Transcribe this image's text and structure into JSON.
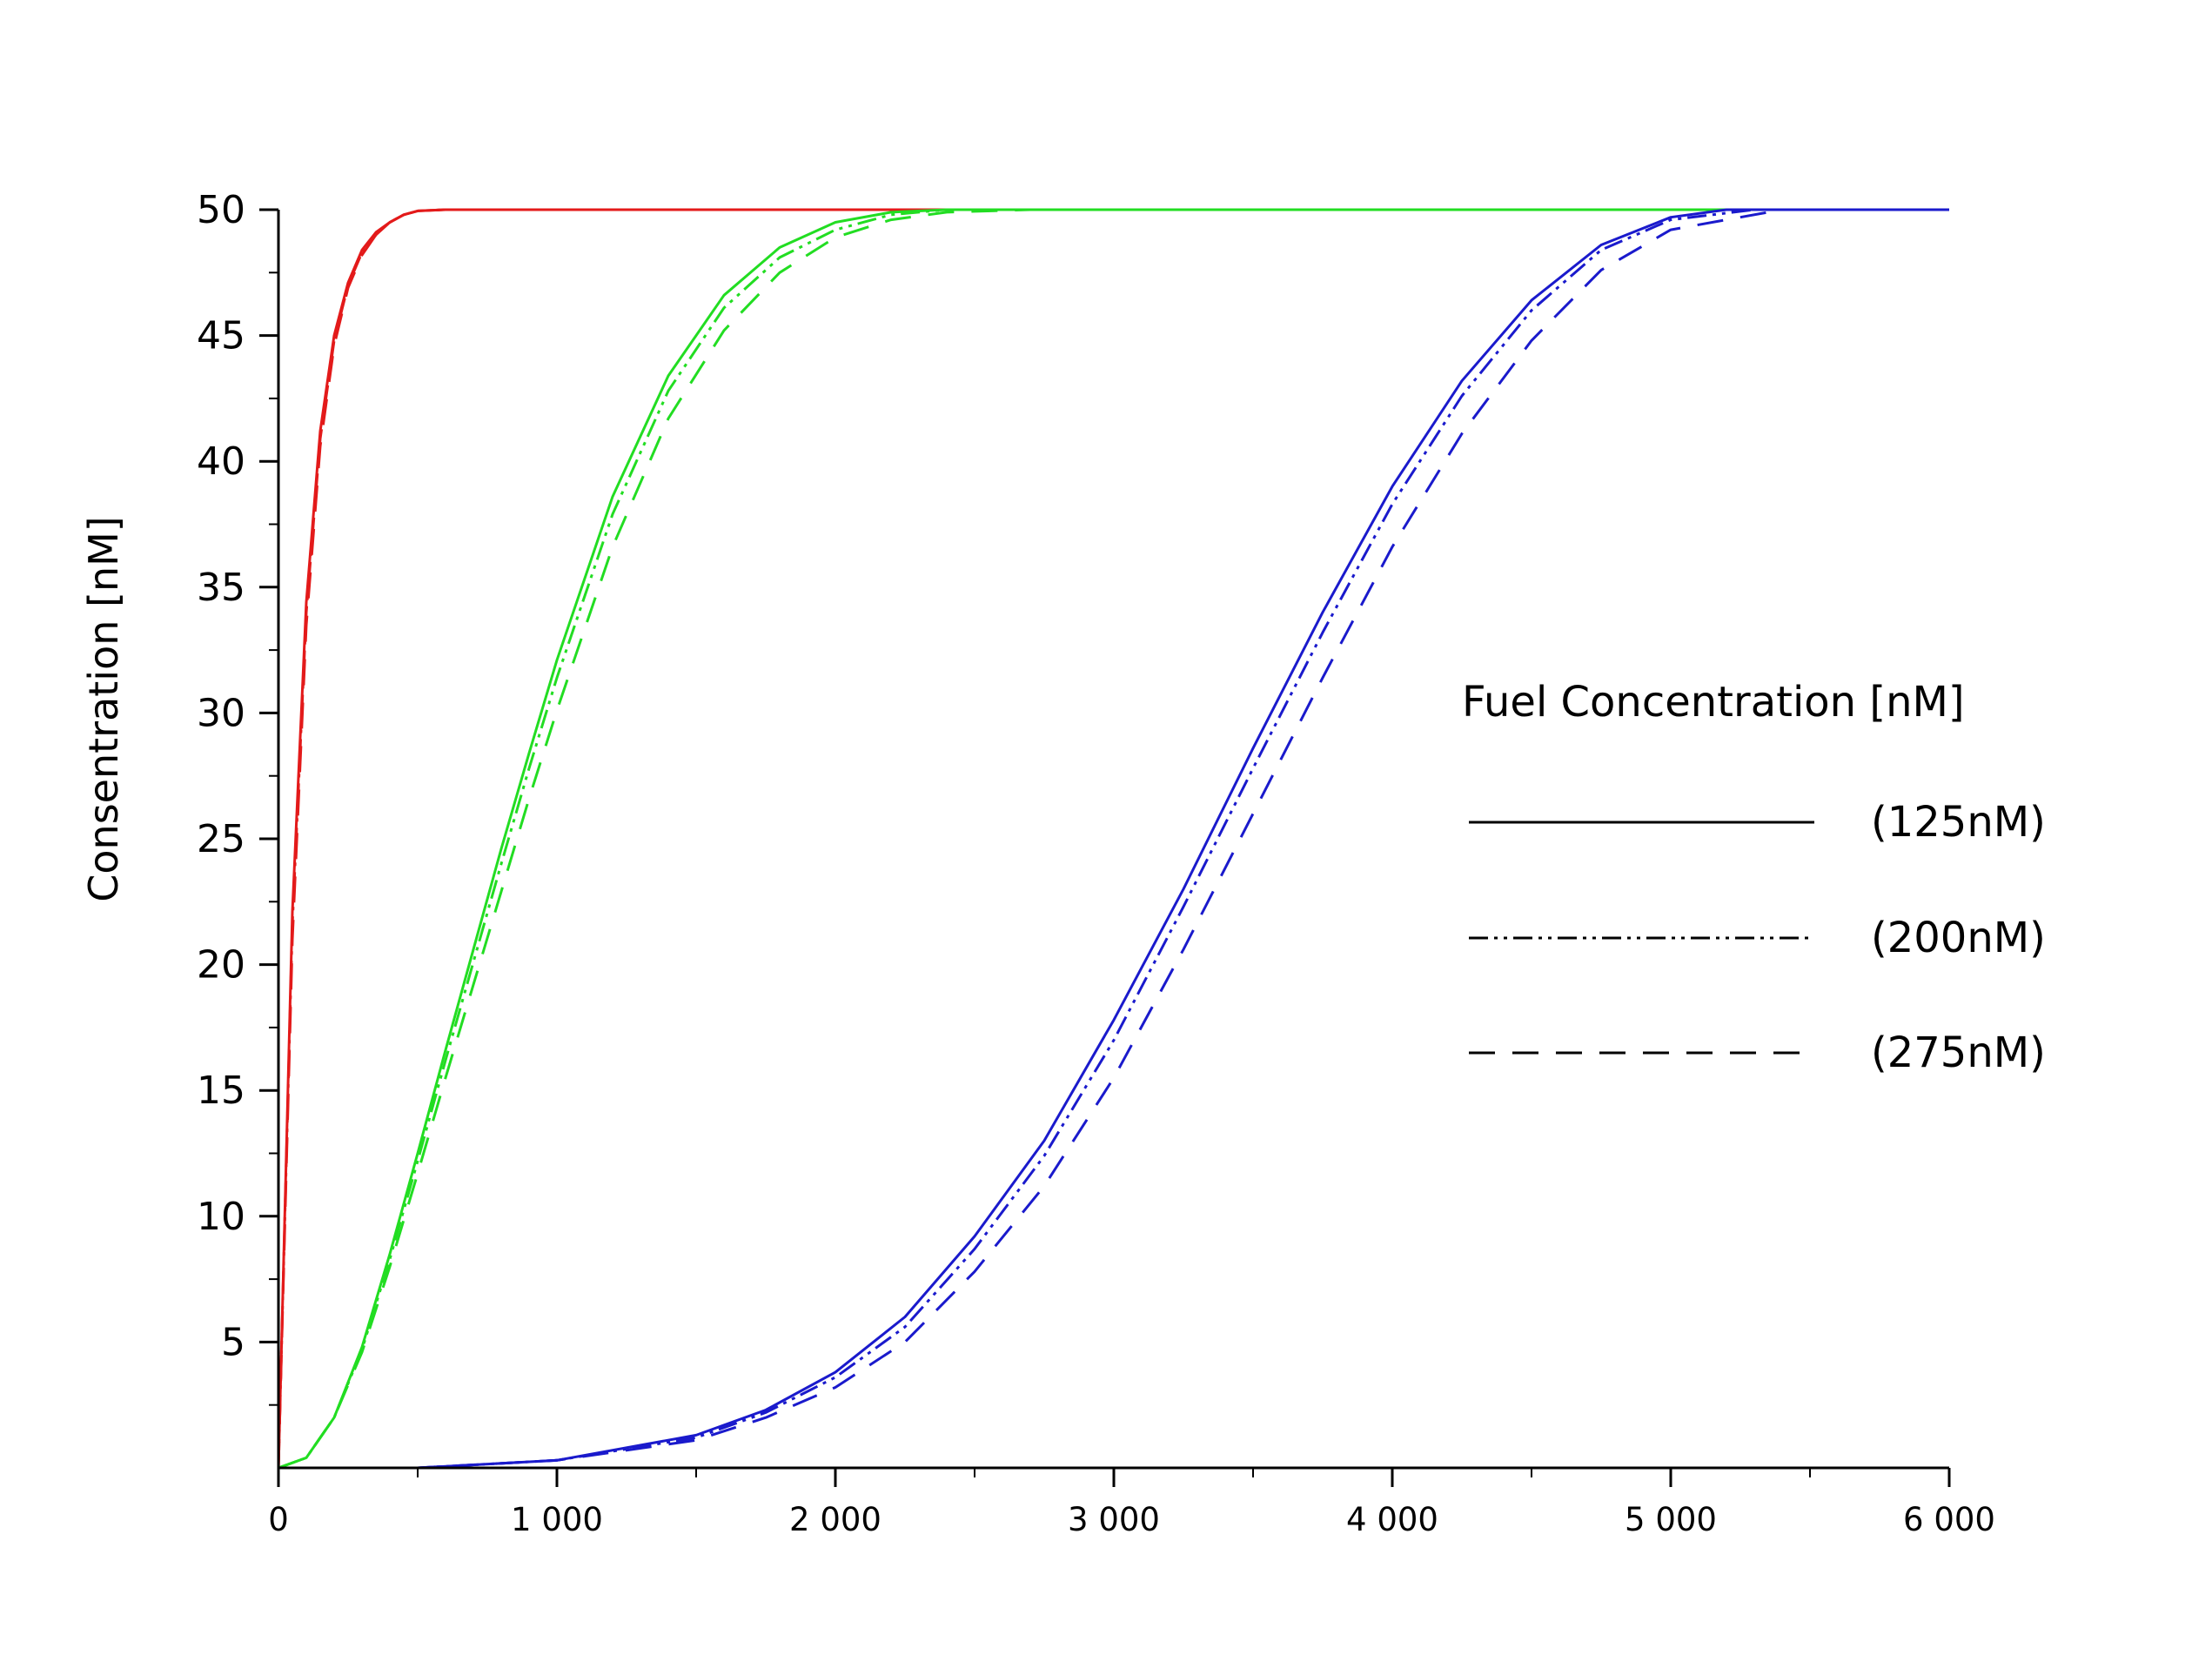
{
  "chart_data": {
    "type": "line",
    "title": "",
    "xlabel": "",
    "ylabel": "Consentration [nM]",
    "xlim": [
      0,
      6000
    ],
    "ylim": [
      0,
      50
    ],
    "x_ticks": [
      0,
      1000,
      2000,
      3000,
      4000,
      5000,
      6000
    ],
    "x_tick_labels": [
      "0",
      "1 000",
      "2 000",
      "3 000",
      "4 000",
      "5 000",
      "6 000"
    ],
    "y_ticks": [
      5,
      10,
      15,
      20,
      25,
      30,
      35,
      40,
      45,
      50
    ],
    "y_tick_labels": [
      "5",
      "10",
      "15",
      "20",
      "25",
      "30",
      "35",
      "40",
      "45",
      "50"
    ],
    "grid": false,
    "legend": {
      "title": "Fuel Concentration  [nM]",
      "placement": "right",
      "entries": [
        {
          "label": "(125nM)",
          "style": "solid"
        },
        {
          "label": "(200nM)",
          "style": "dash-dot-dot"
        },
        {
          "label": "(275nM)",
          "style": "dashed"
        }
      ]
    },
    "colors": {
      "red": "#e31a1a",
      "green": "#22dd22",
      "blue": "#1a1acc",
      "axis": "#000000"
    },
    "series": [
      {
        "color": "red",
        "style": "solid",
        "x": [
          0,
          50,
          100,
          150,
          200,
          250,
          300,
          350,
          400,
          450,
          500,
          600,
          800,
          6000
        ],
        "y": [
          0,
          22.1,
          34.4,
          41.2,
          45.0,
          47.1,
          48.4,
          49.1,
          49.5,
          49.8,
          49.95,
          50,
          50,
          50
        ]
      },
      {
        "color": "red",
        "style": "dash-dot-dot",
        "x": [
          0,
          50,
          100,
          150,
          200,
          250,
          300,
          350,
          400,
          450,
          500,
          600,
          800,
          6000
        ],
        "y": [
          0,
          21.6,
          34.0,
          40.9,
          44.8,
          47.0,
          48.3,
          49.0,
          49.5,
          49.8,
          49.95,
          50,
          50,
          50
        ]
      },
      {
        "color": "red",
        "style": "dashed",
        "x": [
          0,
          50,
          100,
          150,
          200,
          250,
          300,
          350,
          400,
          450,
          500,
          600,
          800,
          6000
        ],
        "y": [
          0,
          21.0,
          33.5,
          40.6,
          44.6,
          46.9,
          48.2,
          49.0,
          49.5,
          49.8,
          49.95,
          50,
          50,
          50
        ]
      },
      {
        "color": "green",
        "style": "solid",
        "x": [
          0,
          100,
          200,
          300,
          400,
          500,
          600,
          700,
          800,
          900,
          1000,
          1200,
          1400,
          1600,
          1800,
          2000,
          2200,
          2400,
          2600,
          6000
        ],
        "y": [
          0,
          0.4,
          2.0,
          4.8,
          8.5,
          12.5,
          16.6,
          20.6,
          24.6,
          28.4,
          32.1,
          38.6,
          43.4,
          46.6,
          48.5,
          49.5,
          49.9,
          50,
          50,
          50
        ]
      },
      {
        "color": "green",
        "style": "dash-dot-dot",
        "x": [
          0,
          100,
          200,
          300,
          400,
          500,
          600,
          700,
          800,
          900,
          1000,
          1200,
          1400,
          1600,
          1800,
          2000,
          2200,
          2400,
          2600,
          6000
        ],
        "y": [
          0,
          0.4,
          2.0,
          4.7,
          8.3,
          12.2,
          16.2,
          20.1,
          24.0,
          27.8,
          31.4,
          37.9,
          42.8,
          46.1,
          48.1,
          49.2,
          49.8,
          50,
          50,
          50
        ]
      },
      {
        "color": "green",
        "style": "dashed",
        "x": [
          0,
          100,
          200,
          300,
          400,
          500,
          600,
          700,
          800,
          900,
          1000,
          1200,
          1400,
          1600,
          1800,
          2000,
          2200,
          2400,
          2700,
          6000
        ],
        "y": [
          0,
          0.4,
          2.0,
          4.6,
          8.0,
          11.7,
          15.5,
          19.2,
          22.9,
          26.6,
          30.1,
          36.6,
          41.7,
          45.2,
          47.5,
          48.9,
          49.6,
          49.9,
          50,
          50
        ]
      },
      {
        "color": "blue",
        "style": "solid",
        "x": [
          0,
          500,
          1000,
          1500,
          1750,
          2000,
          2250,
          2500,
          2750,
          3000,
          3250,
          3500,
          3750,
          4000,
          4250,
          4500,
          4750,
          5000,
          5200,
          6000
        ],
        "y": [
          0,
          0,
          0.3,
          1.3,
          2.3,
          3.8,
          6.0,
          9.2,
          13.0,
          17.8,
          23.0,
          28.6,
          34.0,
          39.0,
          43.2,
          46.4,
          48.6,
          49.7,
          50,
          50
        ]
      },
      {
        "color": "blue",
        "style": "dash-dot-dot",
        "x": [
          0,
          500,
          1000,
          1500,
          1750,
          2000,
          2250,
          2500,
          2750,
          3000,
          3250,
          3500,
          3750,
          4000,
          4250,
          4500,
          4750,
          5000,
          5300,
          6000
        ],
        "y": [
          0,
          0,
          0.3,
          1.2,
          2.2,
          3.6,
          5.6,
          8.7,
          12.4,
          17.0,
          22.3,
          27.8,
          33.2,
          38.3,
          42.6,
          46.0,
          48.4,
          49.6,
          50,
          50
        ]
      },
      {
        "color": "blue",
        "style": "dashed",
        "x": [
          0,
          500,
          1000,
          1500,
          1750,
          2000,
          2250,
          2500,
          2750,
          3000,
          3250,
          3500,
          3750,
          4000,
          4250,
          4500,
          4750,
          5000,
          5400,
          6000
        ],
        "y": [
          0,
          0,
          0.3,
          1.1,
          2.0,
          3.2,
          5.0,
          7.8,
          11.2,
          15.5,
          20.6,
          26.0,
          31.4,
          36.6,
          41.1,
          44.8,
          47.6,
          49.2,
          50,
          50
        ]
      }
    ]
  }
}
